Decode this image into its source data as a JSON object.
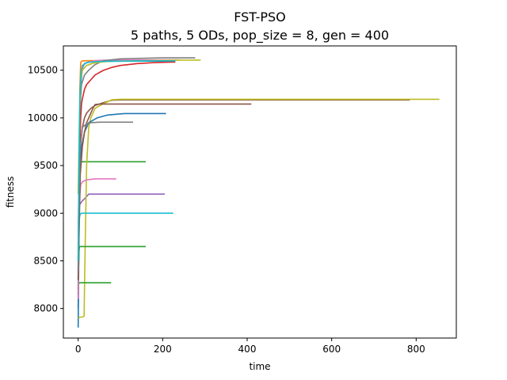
{
  "chart_data": {
    "type": "line",
    "title": "FST-PSO",
    "subtitle": "5 paths, 5 ODs, pop_size = 8, gen = 400",
    "xlabel": "time",
    "ylabel": "fitness",
    "xlim": [
      -35,
      895
    ],
    "ylim": [
      7690,
      10755
    ],
    "xticks": [
      0,
      200,
      400,
      600,
      800
    ],
    "yticks": [
      8000,
      8500,
      9000,
      9500,
      10000,
      10500
    ],
    "grid": false,
    "legend": "none",
    "series": [
      {
        "color": "#1f77b4",
        "x": [
          0,
          2,
          4,
          6,
          10,
          15,
          25,
          40,
          60,
          100,
          150,
          200,
          230
        ],
        "y": [
          7800,
          8800,
          9900,
          10350,
          10520,
          10570,
          10585,
          10590,
          10592,
          10594,
          10595,
          10596,
          10596
        ]
      },
      {
        "color": "#ff7f0e",
        "x": [
          0,
          2,
          4,
          6,
          8,
          12,
          20,
          40,
          80,
          150,
          230
        ],
        "y": [
          8100,
          9300,
          10300,
          10580,
          10595,
          10598,
          10600,
          10601,
          10602,
          10602,
          10602
        ]
      },
      {
        "color": "#2ca02c",
        "x": [
          0,
          1,
          2,
          3,
          160
        ],
        "y": [
          8200,
          8900,
          9300,
          9540,
          9540
        ]
      },
      {
        "color": "#d62728",
        "x": [
          0,
          2,
          4,
          6,
          8,
          10,
          15,
          20,
          30,
          40,
          60,
          80,
          100,
          140,
          180,
          220,
          230
        ],
        "y": [
          8400,
          9200,
          9700,
          10000,
          10150,
          10200,
          10300,
          10350,
          10400,
          10450,
          10500,
          10530,
          10550,
          10570,
          10580,
          10585,
          10585
        ]
      },
      {
        "color": "#9467bd",
        "x": [
          0,
          1,
          2,
          3,
          5,
          10,
          15,
          25,
          205
        ],
        "y": [
          8200,
          8600,
          8950,
          9080,
          9100,
          9130,
          9150,
          9200,
          9200
        ]
      },
      {
        "color": "#8c564b",
        "x": [
          0,
          2,
          5,
          10,
          15,
          20,
          30,
          40,
          60,
          80,
          100,
          200,
          400,
          785
        ],
        "y": [
          8500,
          9300,
          9700,
          9900,
          10000,
          10050,
          10100,
          10130,
          10160,
          10185,
          10188,
          10188,
          10188,
          10188
        ]
      },
      {
        "color": "#e377c2",
        "x": [
          0,
          2,
          4,
          6,
          8,
          12,
          20,
          40,
          60,
          100,
          150,
          200,
          240
        ],
        "y": [
          8300,
          9400,
          10100,
          10400,
          10500,
          10550,
          10580,
          10600,
          10605,
          10608,
          10608,
          10608,
          10608
        ]
      },
      {
        "color": "#7f7f7f",
        "x": [
          0,
          2,
          4,
          8,
          15,
          25,
          40,
          60,
          100,
          200,
          277
        ],
        "y": [
          8600,
          9500,
          10100,
          10350,
          10450,
          10500,
          10560,
          10600,
          10620,
          10630,
          10630
        ]
      },
      {
        "color": "#bcbd22",
        "x": [
          0,
          5,
          10,
          14,
          16,
          20,
          25,
          30,
          40,
          60,
          80,
          100,
          300,
          600,
          855
        ],
        "y": [
          7900,
          7910,
          7910,
          7920,
          8500,
          9500,
          9900,
          10000,
          10100,
          10150,
          10190,
          10195,
          10195,
          10195,
          10195
        ]
      },
      {
        "color": "#17becf",
        "x": [
          0,
          1,
          2,
          3,
          4,
          5,
          8,
          10,
          225
        ],
        "y": [
          8250,
          8700,
          8900,
          8950,
          8980,
          8990,
          9000,
          9000,
          9000
        ]
      },
      {
        "color": "#1f77b4",
        "x": [
          0,
          1,
          2,
          3,
          5,
          8,
          15,
          25,
          45,
          70,
          95,
          110,
          130,
          140,
          150,
          160,
          175,
          190,
          200,
          208
        ],
        "y": [
          8000,
          8400,
          8900,
          9200,
          9500,
          9700,
          9850,
          9950,
          10000,
          10030,
          10040,
          10045,
          10045,
          10045,
          10045,
          10045,
          10045,
          10045,
          10045,
          10045
        ]
      },
      {
        "color": "#2ca02c",
        "x": [
          0,
          1,
          2,
          3,
          160
        ],
        "y": [
          8150,
          8450,
          8600,
          8650,
          8650
        ]
      },
      {
        "color": "#2ca02c",
        "x": [
          0,
          1,
          2,
          78
        ],
        "y": [
          8150,
          8250,
          8270,
          8270
        ]
      },
      {
        "color": "#e377c2",
        "x": [
          0,
          1,
          2,
          4,
          6,
          10,
          20,
          40,
          90
        ],
        "y": [
          8100,
          8600,
          9000,
          9200,
          9300,
          9330,
          9350,
          9360,
          9360
        ]
      },
      {
        "color": "#8c564b",
        "x": [
          0,
          5,
          10,
          15,
          20,
          25,
          30,
          35,
          40,
          50,
          80,
          150,
          300,
          410
        ],
        "y": [
          8300,
          9400,
          9700,
          9850,
          9950,
          10000,
          10050,
          10100,
          10140,
          10145,
          10145,
          10145,
          10145,
          10145
        ]
      },
      {
        "color": "#7f7f7f",
        "x": [
          0,
          2,
          5,
          10,
          20,
          30,
          50,
          80,
          130
        ],
        "y": [
          8400,
          9200,
          9700,
          9900,
          9940,
          9950,
          9955,
          9955,
          9955
        ]
      },
      {
        "color": "#bcbd22",
        "x": [
          0,
          3,
          6,
          10,
          20,
          40,
          80,
          150,
          220,
          250,
          290
        ],
        "y": [
          9200,
          10000,
          10400,
          10500,
          10550,
          10580,
          10595,
          10600,
          10605,
          10606,
          10606
        ]
      },
      {
        "color": "#17becf",
        "x": [
          0,
          2,
          4,
          6,
          10,
          20,
          40,
          80,
          150,
          210,
          230
        ],
        "y": [
          8500,
          9600,
          10200,
          10450,
          10550,
          10580,
          10590,
          10595,
          10598,
          10598,
          10598
        ]
      }
    ]
  }
}
